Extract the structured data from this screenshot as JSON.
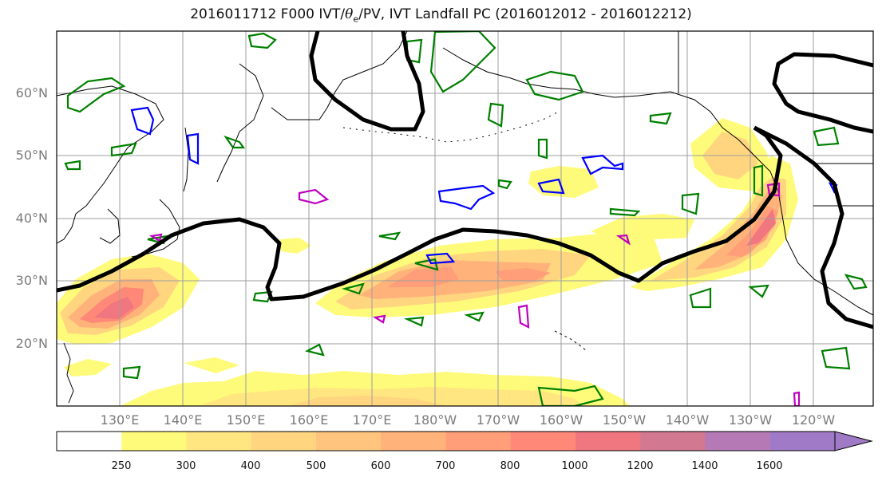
{
  "title": {
    "prefix": "2016011712 F000 IVT/",
    "theta": "θ",
    "theta_sub": "e",
    "suffix": "/PV, IVT Landfall PC (2016012012 - 2016012212)"
  },
  "map": {
    "lat_labels": [
      "60°N",
      "50°N",
      "40°N",
      "30°N",
      "20°N"
    ],
    "lon_labels": [
      "130°E",
      "140°E",
      "150°E",
      "160°E",
      "170°E",
      "180°W",
      "170°W",
      "160°W",
      "150°W",
      "140°W",
      "130°W",
      "120°W"
    ],
    "colors": {
      "land_outline": "#000000",
      "grid": "#9e9e9e",
      "theta_e_contour": "#000000",
      "pv_green": "#008000",
      "pv_blue": "#0000ff",
      "pv_magenta": "#c000c0"
    }
  },
  "colorbar": {
    "ticks": [
      "250",
      "300",
      "400",
      "500",
      "600",
      "700",
      "800",
      "1000",
      "1200",
      "1400",
      "1600"
    ],
    "colors": [
      "#ffffff",
      "#fffb7a",
      "#ffe680",
      "#ffd580",
      "#ffc47e",
      "#ffb37a",
      "#ff9e78",
      "#ff8878",
      "#f07680",
      "#d27890",
      "#b57ab6",
      "#a07ac6"
    ],
    "extend": "max"
  },
  "chart_data": {
    "type": "contour-map",
    "fields": [
      "IVT (shaded)",
      "θe (thick black contour)",
      "PV (green/blue/magenta contours)"
    ],
    "levels": [
      250,
      300,
      400,
      500,
      600,
      700,
      800,
      1000,
      1200,
      1400,
      1600
    ],
    "lat_range": [
      10,
      70
    ],
    "lon_range": [
      120,
      250
    ],
    "grid": true
  }
}
